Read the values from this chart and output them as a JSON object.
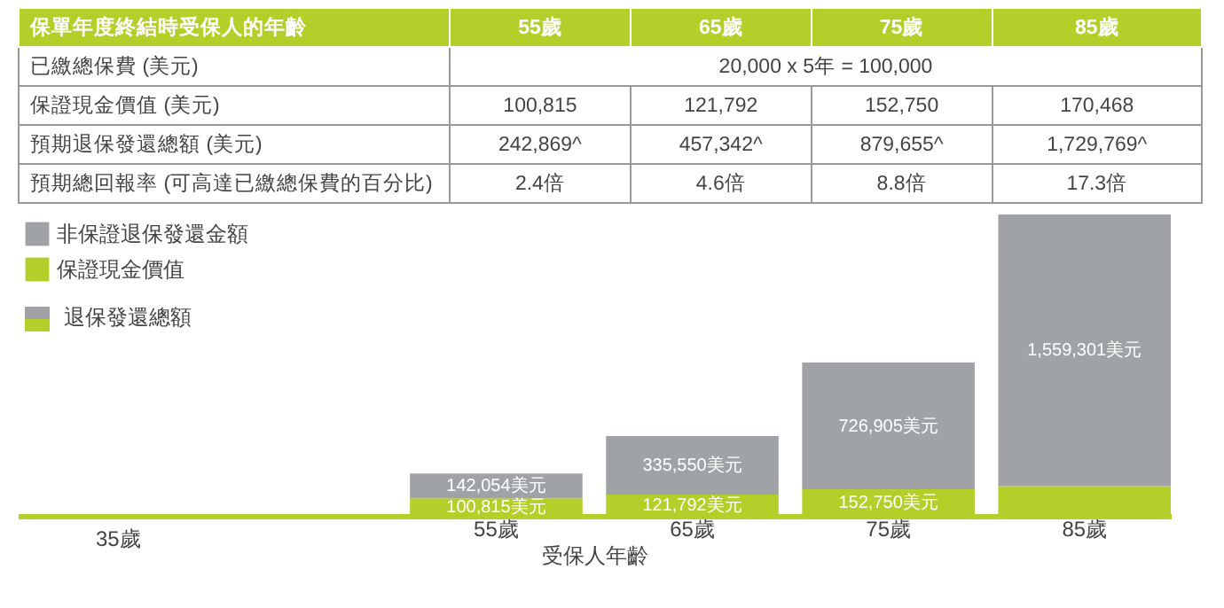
{
  "chart_data": [
    {
      "type": "heatmap",
      "title": "保單年度終結時受保人的年齡",
      "categories": [
        "55歲",
        "65歲",
        "75歲",
        "85歲"
      ],
      "y_categories": [
        "已繳總保費 (美元)",
        "保證現金價值 (美元)",
        "預期退保發還總額 (美元)",
        "預期總回報率 (可高達已繳總保費的百分比)"
      ],
      "cells": [
        [
          null,
          null,
          null,
          null
        ],
        [
          null,
          null,
          null,
          null
        ],
        [
          null,
          null,
          null,
          null
        ],
        [
          null,
          null,
          null,
          null
        ]
      ],
      "cell_labels": [
        [
          "20,000 x 5年 = 100,000",
          null,
          null,
          null
        ],
        [
          "100,815",
          "121,792",
          "152,750",
          "170,468"
        ],
        [
          "242,869^",
          "457,342^",
          "879,655^",
          "1,729,769^"
        ],
        [
          "2.4倍",
          "4.6倍",
          "8.8倍",
          "17.3倍"
        ]
      ]
    },
    {
      "type": "bar",
      "stacked": true,
      "xlabel": "受保人年齡",
      "categories": [
        "55歲",
        "65歲",
        "75歲",
        "85歲"
      ],
      "legend": "top left",
      "annotations": [
        "退保發還總額",
        "35歲"
      ],
      "series": [
        {
          "name": "保證現金價值",
          "color": "#b5cf2a",
          "values": [
            100815,
            121792,
            152750,
            170468
          ],
          "value_labels": [
            "100,815美元",
            "121,792美元",
            "152,750美元",
            null
          ]
        },
        {
          "name": "非保證退保發還金額",
          "color": "#a0a3a6",
          "values": [
            142054,
            335550,
            726905,
            1559301
          ],
          "value_labels": [
            "142,054美元",
            "335,550美元",
            "726,905美元",
            "1,559,301美元"
          ]
        }
      ]
    }
  ]
}
